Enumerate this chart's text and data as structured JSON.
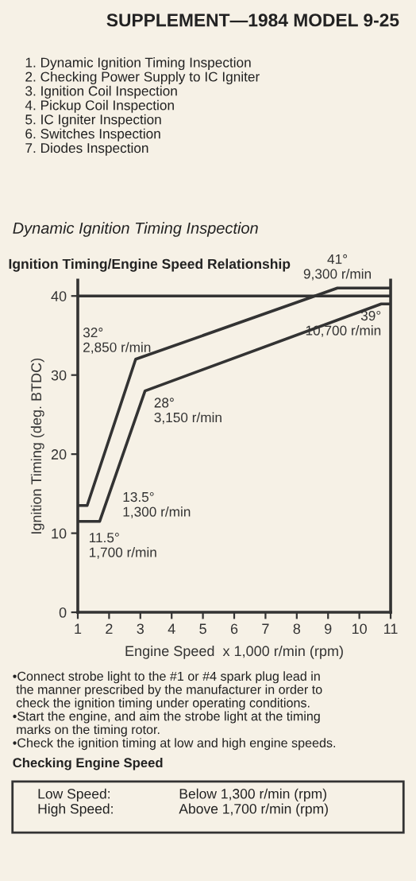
{
  "chart_data": {
    "type": "line",
    "title": "Ignition Timing/Engine Speed Relationship",
    "xlabel": "Engine Speed  x 1,000 r/min (rpm)",
    "ylabel": "Ignition Timing (deg. BTDC)",
    "series": [
      {
        "color": "#333333",
        "x": [
          1,
          1.3,
          2.85,
          9.3,
          11
        ],
        "values": [
          13.5,
          13.5,
          32,
          41,
          41
        ]
      },
      {
        "color": "#333333",
        "x": [
          1,
          1.7,
          3.15,
          10.7,
          11
        ],
        "values": [
          11.5,
          11.5,
          28,
          39,
          39
        ]
      }
    ],
    "xlim": [
      1,
      11
    ],
    "xticks": [
      1,
      2,
      3,
      4,
      5,
      6,
      7,
      8,
      9,
      10,
      11
    ],
    "ylim": [
      0,
      42
    ],
    "yticks": [
      0,
      10,
      20,
      30,
      40
    ],
    "ref_lines": [
      {
        "axis": "y",
        "value": 40,
        "color": "#333333"
      }
    ],
    "grid": false,
    "marker": "none",
    "line_style": "solid",
    "annotations": [
      "SUPPLEMENT—1984 MODEL 9-25",
      "1. Dynamic Ignition Timing Inspection\n2. Checking Power Supply to IC Igniter\n3. Ignition Coil Inspection\n4. Pickup Coil Inspection\n5. IC Igniter Inspection\n6. Switches Inspection\n7. Diodes Inspection",
      "Dynamic Ignition Timing Inspection",
      {
        "text": "41°\n9,300 r/min",
        "x": 9.3,
        "y": 41
      },
      {
        "text": "32°\n2,850 r/min",
        "x": 2.85,
        "y": 32
      },
      {
        "text": "39°\n10,700 r/min",
        "x": 10.7,
        "y": 39
      },
      {
        "text": "28°\n3,150 r/min",
        "x": 3.15,
        "y": 28
      },
      {
        "text": "13.5°\n1,300 r/min",
        "x": 1.3,
        "y": 13.5
      },
      {
        "text": "11.5°\n1,700 r/min",
        "x": 1.7,
        "y": 11.5
      },
      "•Connect strobe light to the #1 or #4 spark plug lead in\n the manner prescribed by the manufacturer in order to\n check the ignition timing under operating conditions.\n•Start the engine, and aim the strobe light at the timing\n marks on the timing rotor.\n•Check the ignition timing at low and high engine speeds.",
      "Checking Engine Speed",
      "Low Speed:\nHigh Speed:",
      "Below 1,300 r/min (rpm)\nAbove 1,700 r/min (rpm)"
    ]
  }
}
